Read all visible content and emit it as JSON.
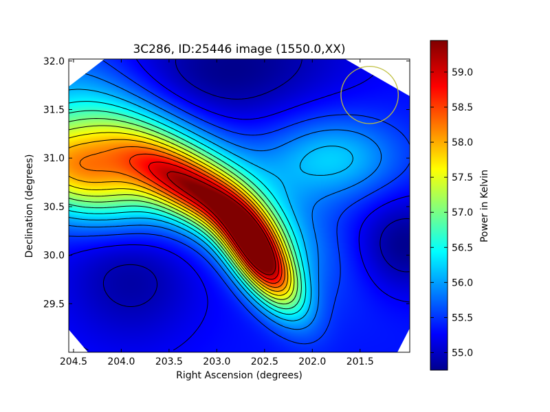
{
  "chart_data": {
    "type": "heatmap",
    "title": "3C286, ID:25446 image (1550.0,XX)",
    "xlabel": "Right Ascension (degrees)",
    "ylabel": "Declination (degrees)",
    "xlim": [
      204.55,
      200.98
    ],
    "ylim": [
      29.0,
      32.02
    ],
    "x_ticks": [
      {
        "value": 204.5,
        "label": "204.5"
      },
      {
        "value": 204.0,
        "label": "204.0"
      },
      {
        "value": 203.5,
        "label": "203.5"
      },
      {
        "value": 203.0,
        "label": "203.0"
      },
      {
        "value": 202.5,
        "label": "202.5"
      },
      {
        "value": 202.0,
        "label": "202.0"
      },
      {
        "value": 201.5,
        "label": "201.5"
      }
    ],
    "y_ticks": [
      {
        "value": 29.5,
        "label": "29.5"
      },
      {
        "value": 30.0,
        "label": "30.0"
      },
      {
        "value": 30.5,
        "label": "30.5"
      },
      {
        "value": 31.0,
        "label": "31.0"
      },
      {
        "value": 31.5,
        "label": "31.5"
      },
      {
        "value": 32.0,
        "label": "32.0"
      }
    ],
    "colorbar": {
      "label": "Power in Kelvin",
      "range": [
        54.75,
        59.45
      ],
      "ticks": [
        {
          "value": 55.0,
          "label": "55.0"
        },
        {
          "value": 55.5,
          "label": "55.5"
        },
        {
          "value": 56.0,
          "label": "56.0"
        },
        {
          "value": 56.5,
          "label": "56.5"
        },
        {
          "value": 57.0,
          "label": "57.0"
        },
        {
          "value": 57.5,
          "label": "57.5"
        },
        {
          "value": 58.0,
          "label": "58.0"
        },
        {
          "value": 58.5,
          "label": "58.5"
        },
        {
          "value": 59.0,
          "label": "59.0"
        }
      ]
    },
    "colormap": "jet",
    "contours": "black lines",
    "features": [
      {
        "name": "peak",
        "ra": 202.55,
        "dec": 29.98,
        "value": 59.3
      },
      {
        "name": "ridge-west",
        "ra": 203.2,
        "dec": 30.65,
        "value": 58.6
      },
      {
        "name": "west-edge",
        "ra": 204.45,
        "dec": 30.9,
        "value": 58.3
      },
      {
        "name": "minimum-north",
        "ra": 202.9,
        "dec": 31.9,
        "value": 54.9
      },
      {
        "name": "minimum-east",
        "ra": 201.05,
        "dec": 30.1,
        "value": 54.9
      }
    ],
    "beam_circle": {
      "ra": 201.4,
      "dec": 31.65,
      "radius_deg": 0.3,
      "color": "#bfbf3f"
    }
  }
}
